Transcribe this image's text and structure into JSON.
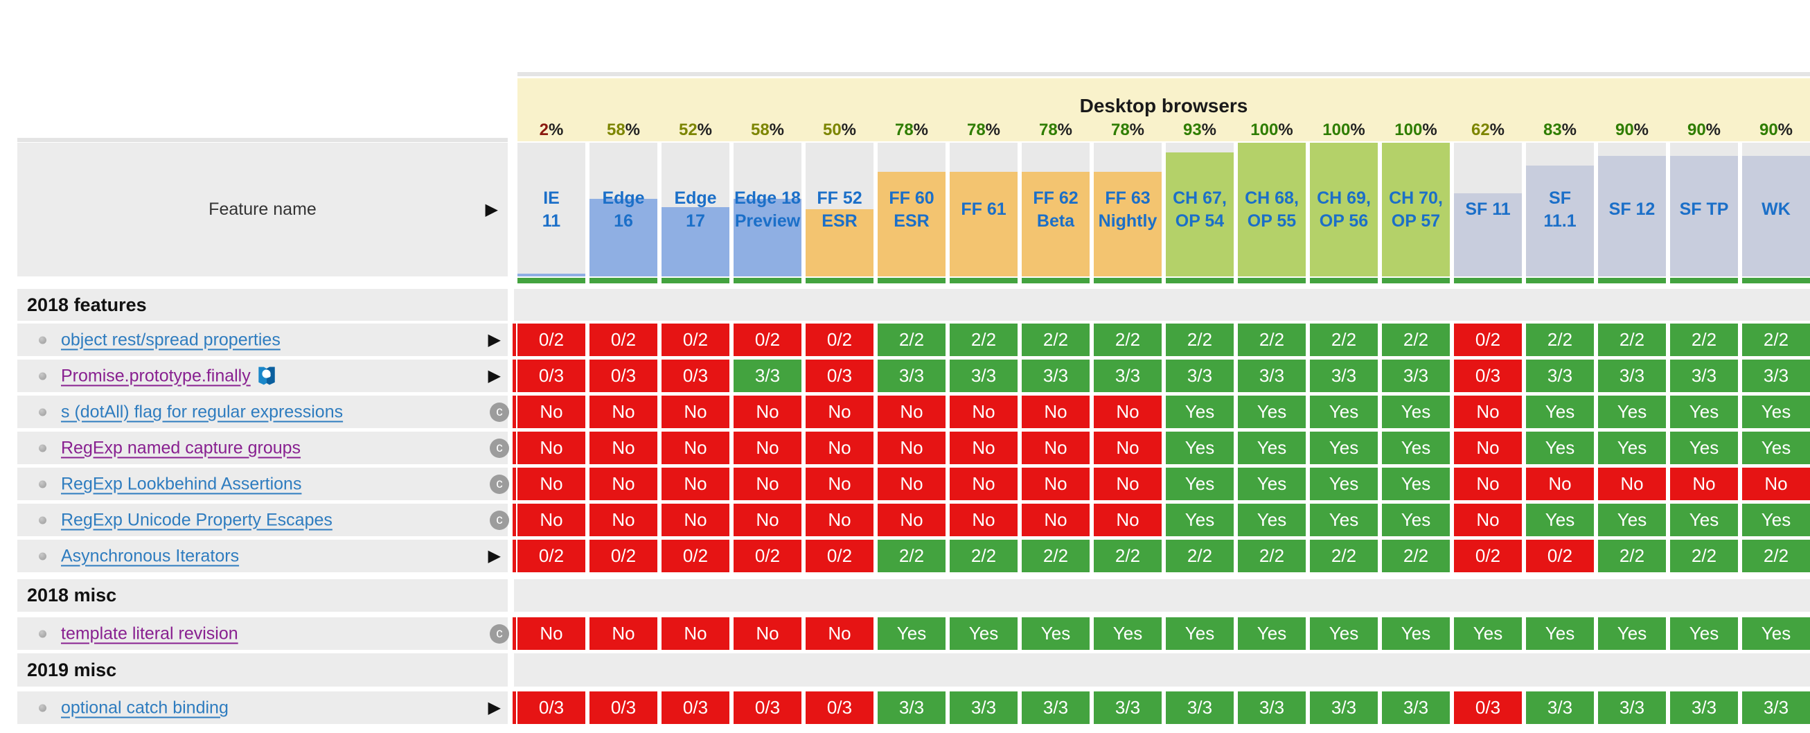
{
  "table": {
    "group_title": "Desktop browsers",
    "feature_column_label": "Feature name",
    "columns": [
      {
        "label": "IE\n11",
        "pct": "2%",
        "level": "low",
        "family": "ie"
      },
      {
        "label": "Edge\n16",
        "pct": "58%",
        "level": "mid",
        "family": "ie"
      },
      {
        "label": "Edge\n17",
        "pct": "52%",
        "level": "mid",
        "family": "ie"
      },
      {
        "label": "Edge 18\nPreview",
        "pct": "58%",
        "level": "mid",
        "family": "ie"
      },
      {
        "label": "FF 52\nESR",
        "pct": "50%",
        "level": "mid",
        "family": "ff"
      },
      {
        "label": "FF 60\nESR",
        "pct": "78%",
        "level": "high",
        "family": "ff"
      },
      {
        "label": "FF 61",
        "pct": "78%",
        "level": "high",
        "family": "ff"
      },
      {
        "label": "FF 62\nBeta",
        "pct": "78%",
        "level": "high",
        "family": "ff"
      },
      {
        "label": "FF 63\nNightly",
        "pct": "78%",
        "level": "high",
        "family": "ff"
      },
      {
        "label": "CH 67,\nOP 54",
        "pct": "93%",
        "level": "high",
        "family": "ch"
      },
      {
        "label": "CH 68,\nOP 55",
        "pct": "100%",
        "level": "high",
        "family": "ch"
      },
      {
        "label": "CH 69,\nOP 56",
        "pct": "100%",
        "level": "high",
        "family": "ch"
      },
      {
        "label": "CH 70,\nOP 57",
        "pct": "100%",
        "level": "high",
        "family": "ch"
      },
      {
        "label": "SF 11",
        "pct": "62%",
        "level": "mid",
        "family": "sf"
      },
      {
        "label": "SF\n11.1",
        "pct": "83%",
        "level": "high",
        "family": "sf"
      },
      {
        "label": "SF 12",
        "pct": "90%",
        "level": "high",
        "family": "sf"
      },
      {
        "label": "SF TP",
        "pct": "90%",
        "level": "high",
        "family": "sf"
      },
      {
        "label": "WK",
        "pct": "90%",
        "level": "high",
        "family": "sf"
      }
    ],
    "sections": [
      {
        "title": "2018 features",
        "rows": [
          {
            "name": "object rest/spread properties",
            "visited": false,
            "marker": "arrow",
            "mdn_icon": false,
            "values": [
              "0/2",
              "0/2",
              "0/2",
              "0/2",
              "0/2",
              "2/2",
              "2/2",
              "2/2",
              "2/2",
              "2/2",
              "2/2",
              "2/2",
              "2/2",
              "0/2",
              "2/2",
              "2/2",
              "2/2",
              "2/2"
            ]
          },
          {
            "name": "Promise.prototype.finally",
            "visited": true,
            "marker": "arrow",
            "mdn_icon": true,
            "values": [
              "0/3",
              "0/3",
              "0/3",
              "3/3",
              "0/3",
              "3/3",
              "3/3",
              "3/3",
              "3/3",
              "3/3",
              "3/3",
              "3/3",
              "3/3",
              "0/3",
              "3/3",
              "3/3",
              "3/3",
              "3/3"
            ]
          },
          {
            "name": "s (dotAll) flag for regular expressions",
            "visited": false,
            "marker": "c",
            "mdn_icon": false,
            "values": [
              "No",
              "No",
              "No",
              "No",
              "No",
              "No",
              "No",
              "No",
              "No",
              "Yes",
              "Yes",
              "Yes",
              "Yes",
              "No",
              "Yes",
              "Yes",
              "Yes",
              "Yes"
            ]
          },
          {
            "name": "RegExp named capture groups",
            "visited": true,
            "marker": "c",
            "mdn_icon": false,
            "values": [
              "No",
              "No",
              "No",
              "No",
              "No",
              "No",
              "No",
              "No",
              "No",
              "Yes",
              "Yes",
              "Yes",
              "Yes",
              "No",
              "Yes",
              "Yes",
              "Yes",
              "Yes"
            ]
          },
          {
            "name": "RegExp Lookbehind Assertions",
            "visited": false,
            "marker": "c",
            "mdn_icon": false,
            "values": [
              "No",
              "No",
              "No",
              "No",
              "No",
              "No",
              "No",
              "No",
              "No",
              "Yes",
              "Yes",
              "Yes",
              "Yes",
              "No",
              "No",
              "No",
              "No",
              "No"
            ]
          },
          {
            "name": "RegExp Unicode Property Escapes",
            "visited": false,
            "marker": "c",
            "mdn_icon": false,
            "values": [
              "No",
              "No",
              "No",
              "No",
              "No",
              "No",
              "No",
              "No",
              "No",
              "Yes",
              "Yes",
              "Yes",
              "Yes",
              "No",
              "Yes",
              "Yes",
              "Yes",
              "Yes"
            ]
          },
          {
            "name": "Asynchronous Iterators",
            "visited": false,
            "marker": "arrow",
            "mdn_icon": false,
            "values": [
              "0/2",
              "0/2",
              "0/2",
              "0/2",
              "0/2",
              "2/2",
              "2/2",
              "2/2",
              "2/2",
              "2/2",
              "2/2",
              "2/2",
              "2/2",
              "0/2",
              "0/2",
              "2/2",
              "2/2",
              "2/2"
            ]
          }
        ]
      },
      {
        "title": "2018 misc",
        "rows": [
          {
            "name": "template literal revision",
            "visited": true,
            "marker": "c",
            "mdn_icon": false,
            "values": [
              "No",
              "No",
              "No",
              "No",
              "No",
              "Yes",
              "Yes",
              "Yes",
              "Yes",
              "Yes",
              "Yes",
              "Yes",
              "Yes",
              "Yes",
              "Yes",
              "Yes",
              "Yes",
              "Yes"
            ]
          }
        ]
      },
      {
        "title": "2019 misc",
        "rows": [
          {
            "name": "optional catch binding",
            "visited": false,
            "marker": "arrow",
            "mdn_icon": false,
            "values": [
              "0/3",
              "0/3",
              "0/3",
              "0/3",
              "0/3",
              "3/3",
              "3/3",
              "3/3",
              "3/3",
              "3/3",
              "3/3",
              "3/3",
              "3/3",
              "0/3",
              "3/3",
              "3/3",
              "3/3",
              "3/3"
            ]
          }
        ]
      }
    ]
  },
  "icons": {
    "row_expand": "▶",
    "contributions_badge": "c",
    "mdn_flag": "mdn-doc-flag"
  },
  "colors": {
    "pass": "#43a33f",
    "fail": "#e61414",
    "fill_ie": "#8fafe3",
    "fill_ff": "#f3c470",
    "fill_ch": "#b4d169",
    "fill_sf": "#c8cddd",
    "pct_low": "#8b1a10",
    "pct_mid": "#7c8500",
    "pct_high": "#2f7d00",
    "header_band": "#f9f2cb",
    "link": "#2e7cbf",
    "link_visited": "#882090"
  }
}
